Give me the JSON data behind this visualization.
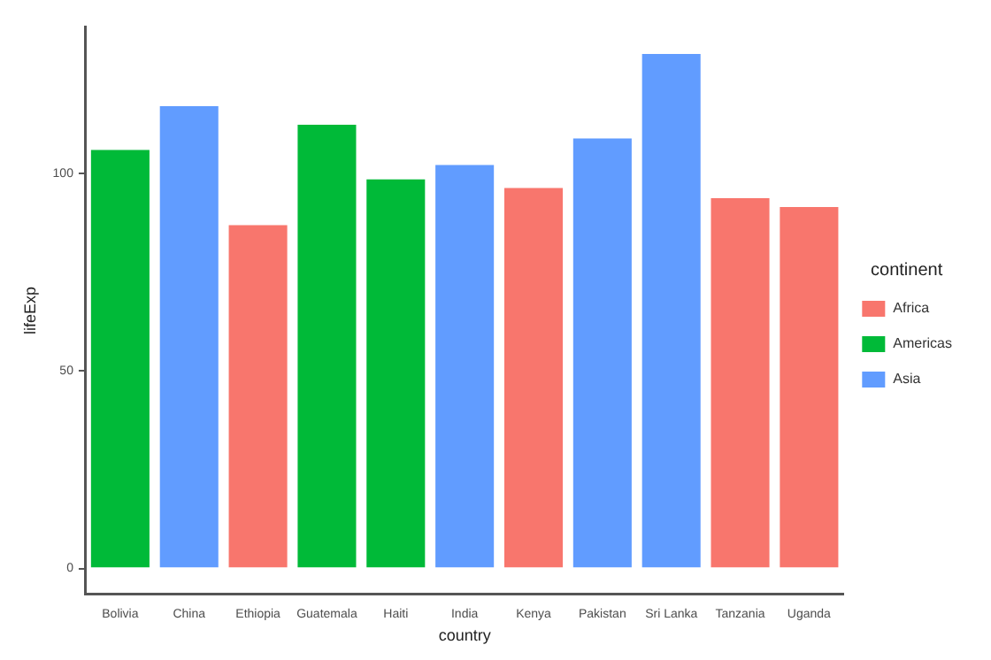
{
  "chart_data": {
    "type": "bar",
    "xlabel": "country",
    "ylabel": "lifeExp",
    "legend_title": "continent",
    "categories": [
      "Bolivia",
      "China",
      "Ethiopia",
      "Guatemala",
      "Haiti",
      "India",
      "Kenya",
      "Pakistan",
      "Sri Lanka",
      "Tanzania",
      "Uganda"
    ],
    "series": [
      {
        "name": "Africa",
        "color": "#f8766d",
        "values": [
          null,
          null,
          87.3,
          null,
          null,
          null,
          96.7,
          null,
          null,
          94.1,
          91.9
        ]
      },
      {
        "name": "Americas",
        "color": "#00ba38",
        "values": [
          106.3,
          null,
          null,
          112.7,
          98.9,
          null,
          null,
          null,
          null,
          null,
          null
        ]
      },
      {
        "name": "Asia",
        "color": "#619cff",
        "values": [
          null,
          117.4,
          null,
          null,
          null,
          102.5,
          null,
          109.2,
          130.6,
          null,
          null
        ]
      }
    ],
    "ylim": [
      -6.5,
      137
    ],
    "yticks": [
      0,
      50,
      100
    ],
    "grid": false,
    "legend": "right"
  }
}
